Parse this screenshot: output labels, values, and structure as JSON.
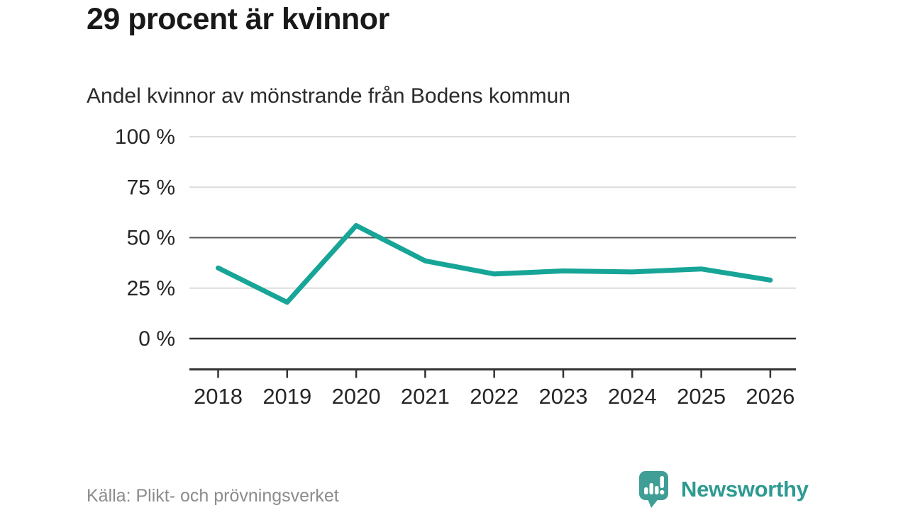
{
  "header": {
    "title": "29 procent är kvinnor",
    "subtitle": "Andel kvinnor av mönstrande från Bodens kommun"
  },
  "footer": {
    "source": "Källa: Plikt- och prövningsverket",
    "brand_name": "Newsworthy",
    "brand_icon": "newsworthy-speech-bubble-bar-chart-icon"
  },
  "colors": {
    "line": "#17a597",
    "grid_light": "#dcdcdc",
    "grid_mid": "#595959",
    "grid_dark": "#333333",
    "axis": "#333333",
    "tick_text": "#262626",
    "brand_teal": "#2e9a91",
    "brand_icon_teal": "#3f9e96"
  },
  "chart_data": {
    "type": "line",
    "title": "29 procent är kvinnor",
    "subtitle": "Andel kvinnor av mönstrande från Bodens kommun",
    "x": [
      2018,
      2019,
      2020,
      2021,
      2022,
      2023,
      2024,
      2025,
      2026
    ],
    "series": [
      {
        "name": "Andel kvinnor av mönstrande",
        "values": [
          35,
          18,
          56,
          38.5,
          32,
          33.5,
          33,
          34.5,
          29
        ]
      }
    ],
    "unit": "%",
    "ylim": [
      0,
      100
    ],
    "yticks": [
      0,
      25,
      50,
      75,
      100
    ],
    "ytick_labels": [
      "0 %",
      "25 %",
      "50 %",
      "75 %",
      "100 %"
    ],
    "grid": "horizontal",
    "baseline_tick": 0,
    "emphasized_tick": 50,
    "legend": "none"
  }
}
